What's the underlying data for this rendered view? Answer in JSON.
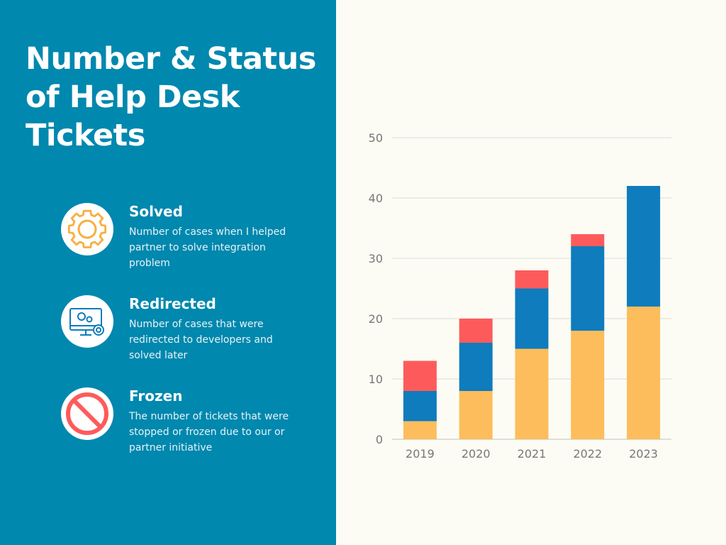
{
  "title": "Number & Status of Help Desk Tickets",
  "legend": [
    {
      "label": "Solved",
      "description": "Number of cases when I helped partner to solve integration problem",
      "icon": "gear-icon",
      "color": "#fdbd5c"
    },
    {
      "label": "Redirected",
      "description": "Number of cases that were redirected to developers and solved later",
      "icon": "monitor-gears-icon",
      "color": "#0e7cbd"
    },
    {
      "label": "Frozen",
      "description": "The number of tickets that were stopped or frozen due to our or partner initiative",
      "icon": "prohibited-icon",
      "color": "#fd5b5b"
    }
  ],
  "chart_data": {
    "type": "bar",
    "stacked": true,
    "categories": [
      "2019",
      "2020",
      "2021",
      "2022",
      "2023"
    ],
    "series": [
      {
        "name": "Solved",
        "values": [
          3,
          8,
          15,
          18,
          22
        ],
        "color": "#fdbd5c"
      },
      {
        "name": "Redirected",
        "values": [
          5,
          8,
          10,
          14,
          20
        ],
        "color": "#0e7cbd"
      },
      {
        "name": "Frozen",
        "values": [
          5,
          4,
          3,
          2,
          0
        ],
        "color": "#fd5b5b"
      }
    ],
    "ylim": [
      0,
      50
    ],
    "yticks": [
      0,
      10,
      20,
      30,
      40,
      50
    ],
    "grid": true
  }
}
